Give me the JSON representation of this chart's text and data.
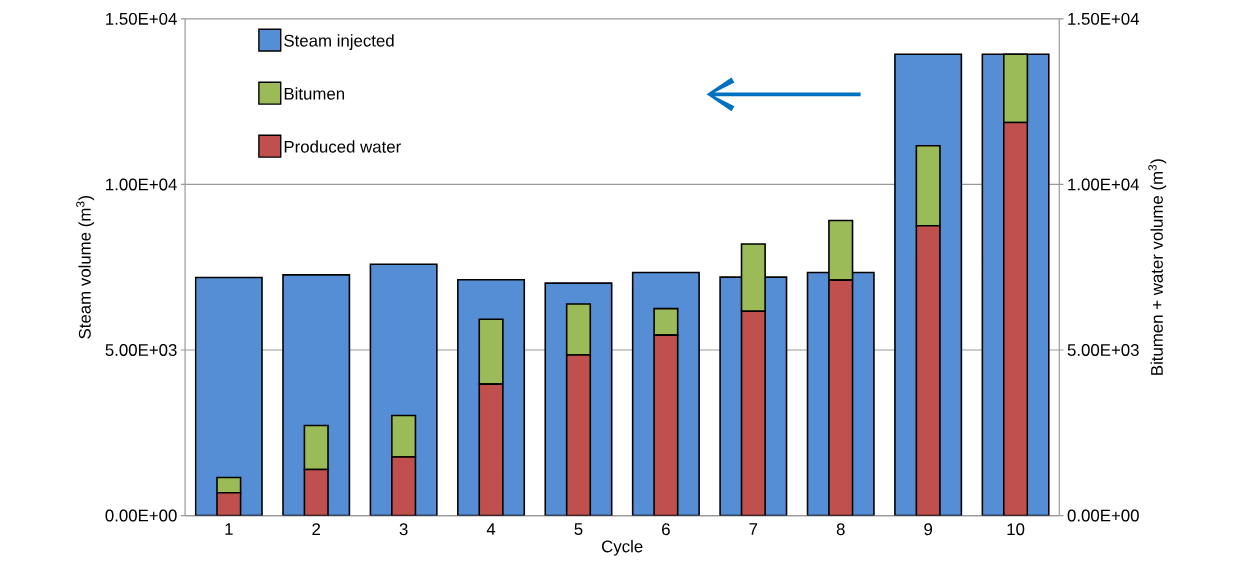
{
  "chart_data": {
    "type": "bar",
    "xlabel": "Cycle",
    "ylabel": "Steam volume (m$^{3}$)",
    "y2label": "Bitumen + water volume (m$^{3}$)",
    "categories": [
      "1",
      "2",
      "3",
      "4",
      "5",
      "6",
      "7",
      "8",
      "9",
      "10"
    ],
    "series": [
      {
        "name": "Steam injected",
        "color": "#558ed5",
        "values": [
          7190,
          7270,
          7590,
          7120,
          7020,
          7340,
          7200,
          7340,
          13930,
          13930
        ]
      },
      {
        "name": "Produced water",
        "color": "#c0504d",
        "axis": "y2",
        "values": [
          690,
          1390,
          1770,
          3970,
          4850,
          5450,
          6170,
          7110,
          8750,
          11870
        ]
      },
      {
        "name": "Bitumen",
        "color": "#9bbb59",
        "axis": "y2",
        "values": [
          460,
          1330,
          1250,
          1960,
          1540,
          800,
          2030,
          1800,
          2420,
          2060
        ]
      }
    ],
    "stacked": true,
    "ylim": [
      0,
      15000
    ],
    "yticks": [
      {
        "value": 0,
        "label": "0.00E+00"
      },
      {
        "value": 5000,
        "label": "5.00E+03"
      },
      {
        "value": 10000,
        "label": "1.00E+04"
      },
      {
        "value": 15000,
        "label": "1.50E+04"
      }
    ],
    "y2lim": [
      0,
      15000
    ],
    "y2ticks": [
      {
        "value": 0,
        "label": "0.00E+00"
      },
      {
        "value": 5000,
        "label": "5.00E+03"
      },
      {
        "value": 10000,
        "label": "1.00E+04"
      },
      {
        "value": 15000,
        "label": "1.50E+04"
      }
    ],
    "grid": "y",
    "legend": "top left"
  }
}
